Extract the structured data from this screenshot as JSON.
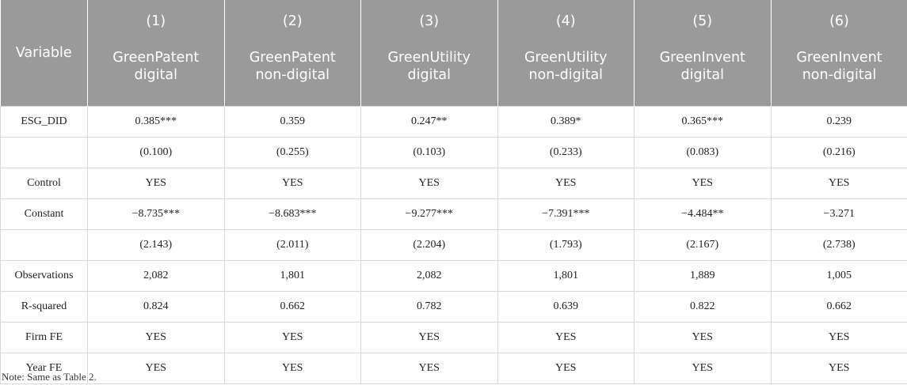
{
  "table": {
    "variable_header": "Variable",
    "columns": [
      {
        "number": "(1)",
        "line1": "GreenPatent",
        "line2": "digital"
      },
      {
        "number": "(2)",
        "line1": "GreenPatent",
        "line2": "non-digital"
      },
      {
        "number": "(3)",
        "line1": "GreenUtility",
        "line2": "digital"
      },
      {
        "number": "(4)",
        "line1": "GreenUtility",
        "line2": "non-digital"
      },
      {
        "number": "(5)",
        "line1": "GreenInvent",
        "line2": "digital"
      },
      {
        "number": "(6)",
        "line1": "GreenInvent",
        "line2": "non-digital"
      }
    ],
    "rows": [
      {
        "label": "ESG_DID",
        "cells": [
          "0.385***",
          "0.359",
          "0.247**",
          "0.389*",
          "0.365***",
          "0.239"
        ]
      },
      {
        "label": "",
        "cells": [
          "(0.100)",
          "(0.255)",
          "(0.103)",
          "(0.233)",
          "(0.083)",
          "(0.216)"
        ]
      },
      {
        "label": "Control",
        "cells": [
          "YES",
          "YES",
          "YES",
          "YES",
          "YES",
          "YES"
        ]
      },
      {
        "label": "Constant",
        "cells": [
          "−8.735***",
          "−8.683***",
          "−9.277***",
          "−7.391***",
          "−4.484**",
          "−3.271"
        ]
      },
      {
        "label": "",
        "cells": [
          "(2.143)",
          "(2.011)",
          "(2.204)",
          "(1.793)",
          "(2.167)",
          "(2.738)"
        ]
      },
      {
        "label": "Observations",
        "cells": [
          "2,082",
          "1,801",
          "2,082",
          "1,801",
          "1,889",
          "1,005"
        ]
      },
      {
        "label": "R-squared",
        "cells": [
          "0.824",
          "0.662",
          "0.782",
          "0.639",
          "0.822",
          "0.662"
        ]
      },
      {
        "label": "Firm FE",
        "cells": [
          "YES",
          "YES",
          "YES",
          "YES",
          "YES",
          "YES"
        ]
      },
      {
        "label": "Year FE",
        "cells": [
          "YES",
          "YES",
          "YES",
          "YES",
          "YES",
          "YES"
        ]
      }
    ]
  },
  "note": "Note: Same as Table 2."
}
